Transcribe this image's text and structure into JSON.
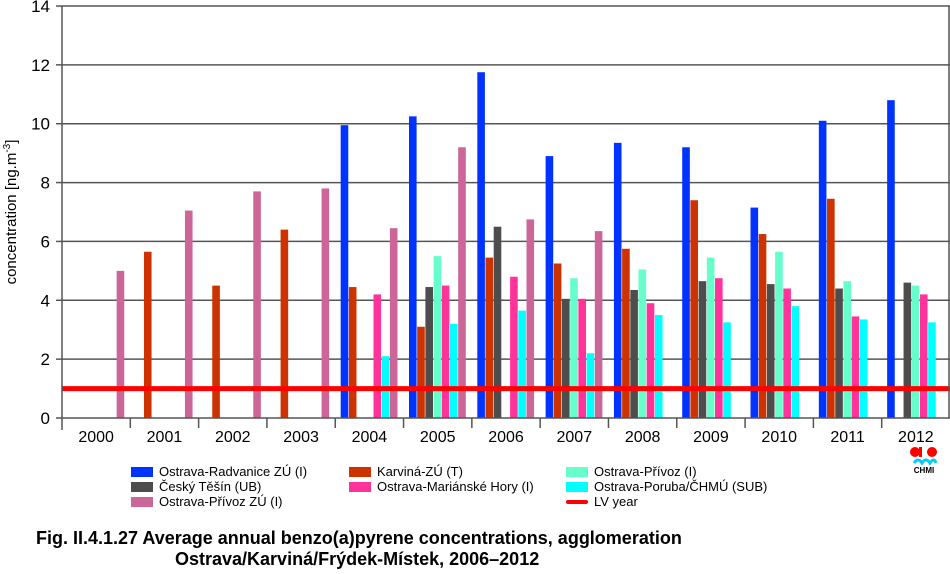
{
  "chart_data": {
    "type": "bar",
    "title": "",
    "xlabel": "",
    "ylabel": "concentration [ng.m-3]",
    "ylabel_main": "concentration [ng.m",
    "ylabel_sup": "-3",
    "ylabel_end": "]",
    "ylim": [
      0,
      14
    ],
    "yticks": [
      0,
      2,
      4,
      6,
      8,
      10,
      12,
      14
    ],
    "grid": true,
    "legend_position": "bottom",
    "categories": [
      "2000",
      "2001",
      "2002",
      "2003",
      "2004",
      "2005",
      "2006",
      "2007",
      "2008",
      "2009",
      "2010",
      "2011",
      "2012"
    ],
    "series": [
      {
        "name": "Ostrava-Radvanice ZÚ (I)",
        "color": "#0033ff",
        "values": [
          null,
          null,
          null,
          null,
          9.95,
          10.25,
          11.75,
          8.9,
          9.35,
          9.2,
          7.15,
          10.1,
          10.8
        ]
      },
      {
        "name": "Karviná-ZÚ (T)",
        "color": "#cc3300",
        "values": [
          null,
          5.65,
          4.5,
          6.4,
          4.45,
          3.1,
          5.45,
          5.25,
          5.75,
          7.4,
          6.25,
          7.45,
          null
        ]
      },
      {
        "name": "Český Těšín (UB)",
        "color": "#4d4d4d",
        "values": [
          null,
          null,
          null,
          null,
          null,
          4.45,
          6.5,
          4.05,
          4.35,
          4.65,
          4.55,
          4.4,
          4.6
        ]
      },
      {
        "name": "Ostrava-Přívoz (I)",
        "color": "#66ffcc",
        "values": [
          null,
          null,
          null,
          null,
          null,
          5.5,
          null,
          4.75,
          5.05,
          5.45,
          5.65,
          4.65,
          4.5
        ]
      },
      {
        "name": "Ostrava-Mariánské Hory (I)",
        "color": "#ff3399",
        "values": [
          null,
          null,
          null,
          null,
          4.2,
          4.5,
          4.8,
          4.05,
          3.9,
          4.75,
          4.4,
          3.45,
          4.2
        ]
      },
      {
        "name": "Ostrava-Poruba/ČHMÚ (SUB)",
        "color": "#00ffff",
        "values": [
          null,
          null,
          null,
          null,
          2.1,
          3.2,
          3.65,
          2.2,
          3.5,
          3.25,
          3.8,
          3.35,
          3.25
        ]
      },
      {
        "name": "Ostrava-Přívoz ZÚ (I)",
        "color": "#cc6699",
        "values": [
          5.0,
          7.05,
          7.7,
          7.8,
          6.45,
          9.2,
          6.75,
          6.35,
          null,
          null,
          null,
          null,
          null
        ]
      }
    ],
    "reference_lines": [
      {
        "name": "LV year",
        "color": "#ff0000",
        "value": 1
      }
    ]
  },
  "legend": {
    "items": [
      {
        "label": "Ostrava-Radvanice ZÚ (I)",
        "color": "#0033ff",
        "kind": "bar"
      },
      {
        "label": "Český Těšín (UB)",
        "color": "#4d4d4d",
        "kind": "bar"
      },
      {
        "label": "Ostrava-Přívoz ZÚ (I)",
        "color": "#cc6699",
        "kind": "bar"
      },
      {
        "label": "Karviná-ZÚ (T)",
        "color": "#cc3300",
        "kind": "bar"
      },
      {
        "label": "Ostrava-Mariánské Hory (I)",
        "color": "#ff3399",
        "kind": "bar"
      },
      {
        "label": "Ostrava-Přívoz (I)",
        "color": "#66ffcc",
        "kind": "bar"
      },
      {
        "label": "Ostrava-Poruba/ČHMÚ (SUB)",
        "color": "#00ffff",
        "kind": "bar"
      },
      {
        "label": "LV year",
        "color": "#ff0000",
        "kind": "line"
      }
    ]
  },
  "caption": {
    "line1": "Fig. II.4.1.27  Average annual benzo(a)pyrene concentrations, agglomeration",
    "line2": "Ostrava/Karviná/Frýdek-Místek, 2006–2012"
  },
  "logo": {
    "text": "CHMI",
    "dot_color": "#ff0000",
    "wave_color": "#00ccff"
  }
}
